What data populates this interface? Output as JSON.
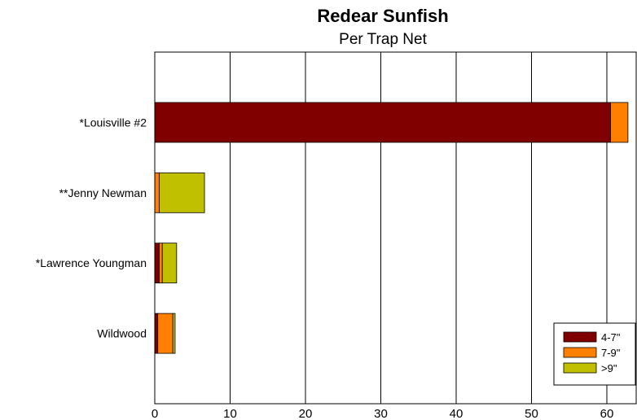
{
  "chart_data": {
    "type": "bar",
    "orientation": "horizontal",
    "stacked": true,
    "title": "Redear Sunfish",
    "subtitle": "Per Trap Net",
    "xlabel": "",
    "ylabel": "",
    "categories": [
      "*Louisville #2",
      "**Jenny Newman",
      "*Lawrence Youngman",
      "Wildwood"
    ],
    "series": [
      {
        "name": "4-7\"",
        "color": "#800000",
        "values": [
          60.5,
          0,
          0.6,
          0.4
        ]
      },
      {
        "name": "7-9\"",
        "color": "#ff8000",
        "values": [
          2.3,
          0.6,
          0.4,
          2.0
        ]
      },
      {
        "name": ">9\"",
        "color": "#c0c000",
        "values": [
          0,
          6.0,
          1.9,
          0.3
        ]
      }
    ],
    "xlim": [
      0,
      64
    ],
    "xticks": [
      "0",
      "10",
      "20",
      "30",
      "40",
      "50",
      "60"
    ],
    "grid": true,
    "legend_position": "bottom-right"
  }
}
